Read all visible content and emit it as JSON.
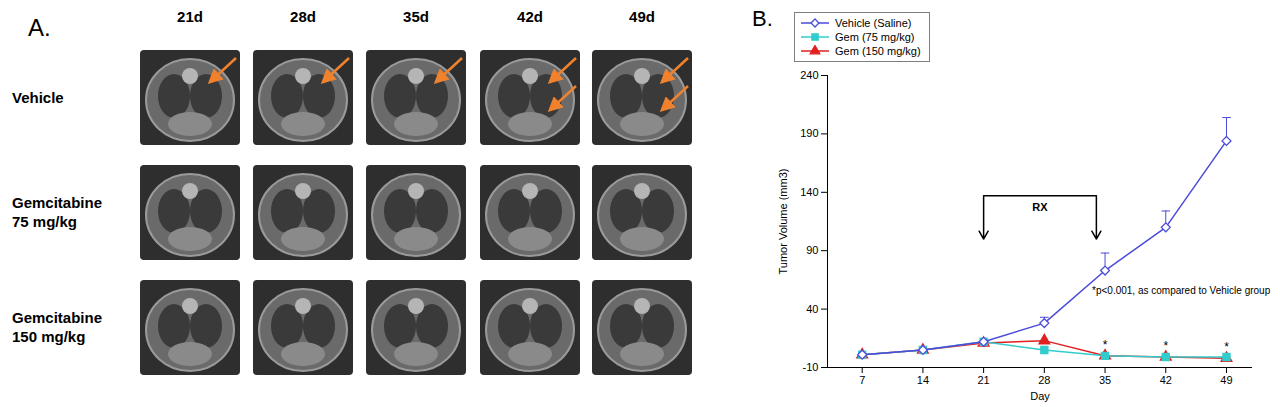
{
  "panel_a": {
    "label": "A.",
    "columns": [
      "21d",
      "28d",
      "35d",
      "42d",
      "49d"
    ],
    "rows": [
      "Vehicle",
      "Gemcitabine 75 mg/kg",
      "Gemcitabine 150 mg/kg"
    ]
  },
  "chart_data": {
    "type": "line",
    "label": "B.",
    "x_label": "Day",
    "y_label": "Tumor Volume (mm3)",
    "x": [
      7,
      14,
      21,
      28,
      35,
      42,
      49
    ],
    "xlim": [
      3,
      52
    ],
    "xticks": [
      7,
      14,
      21,
      28,
      35,
      42,
      49
    ],
    "ylim": [
      -10,
      240
    ],
    "yticks": [
      -10,
      40,
      90,
      140,
      190,
      240
    ],
    "grid": false,
    "legend": "top-left",
    "series": [
      {
        "name": "Vehicle (Saline)",
        "color": "#4b4bdc",
        "marker": "diamond_open",
        "values": [
          1,
          5,
          12,
          28,
          73,
          110,
          184
        ],
        "errors": [
          null,
          null,
          null,
          5,
          15,
          14,
          20
        ]
      },
      {
        "name": "Gem (75 mg/kg)",
        "color": "#33cccc",
        "marker": "square",
        "values": [
          1,
          5,
          12,
          5,
          0,
          -1,
          -1
        ]
      },
      {
        "name": "Gem (150 mg/kg)",
        "color": "#e02020",
        "marker": "triangle",
        "values": [
          1,
          5,
          11,
          13,
          0,
          -1,
          -2
        ]
      }
    ],
    "annotations": [
      {
        "text": "RX",
        "x1": 21,
        "x2": 34,
        "y": 137,
        "y_end": 100
      },
      {
        "text": "*p<0.001, as compared to Vehicle group",
        "x": 33.5,
        "y": 56
      }
    ],
    "significance": {
      "text": "*",
      "x": [
        35,
        42,
        49
      ]
    }
  }
}
